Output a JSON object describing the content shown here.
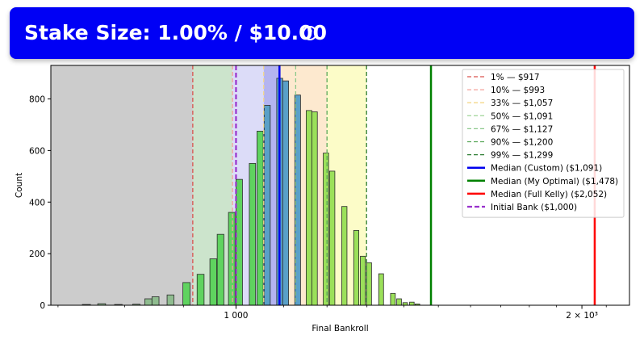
{
  "header": {
    "title": "Stake Size: 1.00% / $10.00",
    "help_icon": "question-circle-icon"
  },
  "chart_data": {
    "type": "histogram",
    "xlabel": "Final Bankroll",
    "ylabel": "Count",
    "x_scale": "log",
    "xlim": [
      690,
      2200
    ],
    "ylim": [
      0,
      930
    ],
    "x_ticks": [
      {
        "value": 1000,
        "label": "1 000"
      },
      {
        "value": 2000,
        "label": "2 × 10³"
      }
    ],
    "y_ticks": [
      0,
      200,
      400,
      600,
      800
    ],
    "grid": false,
    "legend_position": "top-right",
    "shaded_bands": [
      {
        "from": 690,
        "to": 917,
        "color": "#cccccc"
      },
      {
        "from": 917,
        "to": 993,
        "color": "#cce4cc"
      },
      {
        "from": 993,
        "to": 1057,
        "color": "#dcdcf8"
      },
      {
        "from": 1057,
        "to": 1091,
        "color": "#b4b4f0"
      },
      {
        "from": 1091,
        "to": 1127,
        "color": "#fde9cf"
      },
      {
        "from": 1127,
        "to": 1200,
        "color": "#fde9cf"
      },
      {
        "from": 1200,
        "to": 1299,
        "color": "#fcfcc8"
      }
    ],
    "bins": [
      {
        "x0": 735,
        "x1": 747,
        "count": 3,
        "color": "#8fbc8f"
      },
      {
        "x0": 758,
        "x1": 770,
        "count": 6,
        "color": "#8fbc8f"
      },
      {
        "x0": 784,
        "x1": 796,
        "count": 3,
        "color": "#8fbc8f"
      },
      {
        "x0": 813,
        "x1": 825,
        "count": 4,
        "color": "#8fbc8f"
      },
      {
        "x0": 833,
        "x1": 845,
        "count": 25,
        "color": "#8fbc8f"
      },
      {
        "x0": 845,
        "x1": 857,
        "count": 33,
        "color": "#8fbc8f"
      },
      {
        "x0": 871,
        "x1": 883,
        "count": 40,
        "color": "#8fbc8f"
      },
      {
        "x0": 899,
        "x1": 912,
        "count": 88,
        "color": "#5fd35f"
      },
      {
        "x0": 925,
        "x1": 938,
        "count": 120,
        "color": "#5fd35f"
      },
      {
        "x0": 949,
        "x1": 962,
        "count": 180,
        "color": "#5fd35f"
      },
      {
        "x0": 963,
        "x1": 976,
        "count": 275,
        "color": "#5fd35f"
      },
      {
        "x0": 985,
        "x1": 998,
        "count": 360,
        "color": "#5fd35f"
      },
      {
        "x0": 1000,
        "x1": 1013,
        "count": 488,
        "color": "#5fd35f"
      },
      {
        "x0": 1027,
        "x1": 1040,
        "count": 550,
        "color": "#5fd35f"
      },
      {
        "x0": 1043,
        "x1": 1056,
        "count": 675,
        "color": "#5fd35f"
      },
      {
        "x0": 1058,
        "x1": 1071,
        "count": 775,
        "color": "#5aa0c8"
      },
      {
        "x0": 1085,
        "x1": 1098,
        "count": 880,
        "color": "#5aa0c8"
      },
      {
        "x0": 1098,
        "x1": 1111,
        "count": 870,
        "color": "#5aa0c8"
      },
      {
        "x0": 1125,
        "x1": 1138,
        "count": 815,
        "color": "#5aa0c8"
      },
      {
        "x0": 1151,
        "x1": 1164,
        "count": 755,
        "color": "#9be05a"
      },
      {
        "x0": 1164,
        "x1": 1177,
        "count": 750,
        "color": "#9be05a"
      },
      {
        "x0": 1191,
        "x1": 1204,
        "count": 590,
        "color": "#9be05a"
      },
      {
        "x0": 1206,
        "x1": 1219,
        "count": 520,
        "color": "#9be05a"
      },
      {
        "x0": 1236,
        "x1": 1249,
        "count": 383,
        "color": "#9be05a"
      },
      {
        "x0": 1266,
        "x1": 1279,
        "count": 290,
        "color": "#9be05a"
      },
      {
        "x0": 1283,
        "x1": 1296,
        "count": 190,
        "color": "#9be05a"
      },
      {
        "x0": 1299,
        "x1": 1312,
        "count": 165,
        "color": "#9be05a"
      },
      {
        "x0": 1331,
        "x1": 1344,
        "count": 122,
        "color": "#9be05a"
      },
      {
        "x0": 1363,
        "x1": 1376,
        "count": 46,
        "color": "#9be05a"
      },
      {
        "x0": 1380,
        "x1": 1393,
        "count": 25,
        "color": "#9be05a"
      },
      {
        "x0": 1397,
        "x1": 1410,
        "count": 10,
        "color": "#9be05a"
      },
      {
        "x0": 1416,
        "x1": 1429,
        "count": 12,
        "color": "#9be05a"
      },
      {
        "x0": 1432,
        "x1": 1445,
        "count": 5,
        "color": "#9be05a"
      }
    ],
    "percentile_lines": [
      {
        "label": "1% — $917",
        "value": 917,
        "color": "#d9534f"
      },
      {
        "label": "10% — $993",
        "value": 993,
        "color": "#f4a09a"
      },
      {
        "label": "33% — $1,057",
        "value": 1057,
        "color": "#f4d88a"
      },
      {
        "label": "50% — $1,091",
        "value": 1091,
        "color": "#a8d8a0"
      },
      {
        "label": "67% — $1,127",
        "value": 1127,
        "color": "#8cc88c"
      },
      {
        "label": "90% — $1,200",
        "value": 1200,
        "color": "#5aa85a"
      },
      {
        "label": "99% — $1,299",
        "value": 1299,
        "color": "#2e7d32"
      }
    ],
    "median_lines": [
      {
        "label": "Median (Custom) ($1,091)",
        "value": 1091,
        "color": "#0000ee"
      },
      {
        "label": "Median (My Optimal) ($1,478)",
        "value": 1478,
        "color": "#008000"
      },
      {
        "label": "Median (Full Kelly) ($2,052)",
        "value": 2052,
        "color": "#ff0000"
      }
    ],
    "initial_bank": {
      "label": "Initial Bank ($1,000)",
      "value": 1000,
      "color": "#9932cc"
    }
  }
}
